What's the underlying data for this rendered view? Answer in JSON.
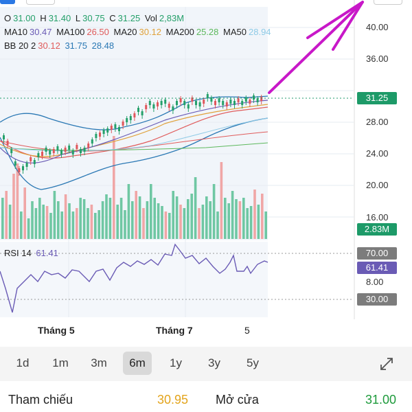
{
  "ohlc": {
    "o_label": "O",
    "o": "31.00",
    "h_label": "H",
    "h": "31.40",
    "l_label": "L",
    "l": "30.75",
    "c_label": "C",
    "c": "31.25",
    "vol_label": "Vol",
    "vol": "2,83M"
  },
  "ma": {
    "ma10_label": "MA10",
    "ma10": "30.47",
    "ma100_label": "MA100",
    "ma100": "26.50",
    "ma20_label": "MA20",
    "ma20": "30.12",
    "ma200_label": "MA200",
    "ma200": "25.28",
    "ma50_label": "MA50",
    "ma50": "28.94"
  },
  "bb": {
    "label": "BB 20 2",
    "mid": "30.12",
    "upper": "31.75",
    "lower": "28.48"
  },
  "price_axis": [
    "40.00",
    "36.00",
    "28.00",
    "24.00",
    "20.00",
    "16.00"
  ],
  "current_price": "31.25",
  "volume_tag": "2.83M",
  "rsi": {
    "label": "RSI 14",
    "value": "61.41",
    "upper": "70.00",
    "mid": "8.00",
    "lower": "30.00"
  },
  "time_axis": [
    "Tháng 5",
    "Tháng 7",
    "5"
  ],
  "ranges": [
    {
      "label": "1d",
      "active": false
    },
    {
      "label": "1m",
      "active": false
    },
    {
      "label": "3m",
      "active": false
    },
    {
      "label": "6m",
      "active": true
    },
    {
      "label": "1y",
      "active": false
    },
    {
      "label": "3y",
      "active": false
    },
    {
      "label": "5y",
      "active": false
    }
  ],
  "expand_icon": "expand-icon",
  "info": {
    "ref_label": "Tham chiếu",
    "ref_value": "30.95",
    "open_label": "Mở cửa",
    "open_value": "31.00"
  },
  "colors": {
    "up": "#25a06a",
    "down": "#e0565b",
    "ma10": "#6a5bb5",
    "ma100": "#e05a5a",
    "ma20": "#e0a13a",
    "ma200": "#5cb85c",
    "ma50": "#8ecae6",
    "bb": "#2a78b4",
    "rsi": "#6a5bb5",
    "annotation": "#c818c8"
  }
}
